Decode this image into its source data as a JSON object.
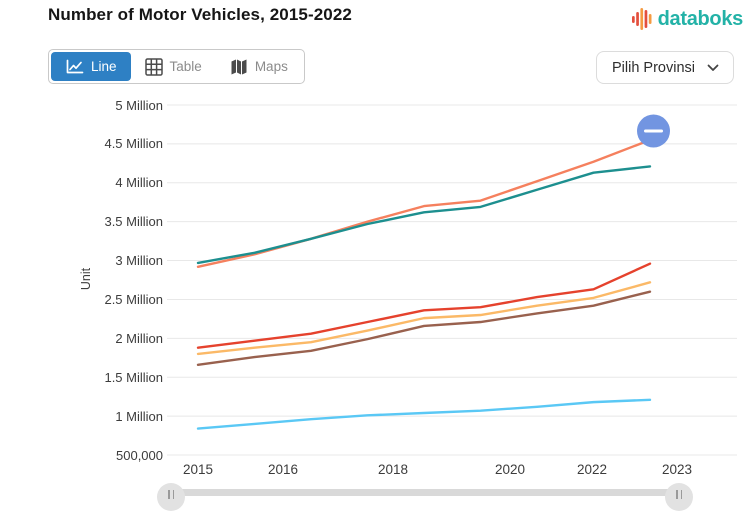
{
  "header": {
    "title": "Number of Motor Vehicles, 2015-2022",
    "brand": "databoks",
    "brand_colors": {
      "text_teal": "#23B2A7",
      "logo_red": "#E34F3D",
      "logo_orange": "#F59B42"
    }
  },
  "toolbar": {
    "tabs": [
      {
        "label": "Line",
        "active": true,
        "icon": "line-chart-icon"
      },
      {
        "label": "Table",
        "active": false,
        "icon": "table-icon"
      },
      {
        "label": "Maps",
        "active": false,
        "icon": "maps-icon"
      }
    ],
    "active_tab_color": "#2E80C4",
    "province_selector_label": "Pilih Provinsi"
  },
  "chart_data": {
    "type": "line",
    "title": "Number of Motor Vehicles, 2015-2022",
    "xlabel": "",
    "ylabel": "Unit",
    "grid": true,
    "legend": false,
    "x": [
      2015,
      2016,
      2017,
      2018,
      2019,
      2020,
      2021,
      2022,
      2023
    ],
    "x_tick_labels": [
      "2015",
      "2016",
      "2018",
      "2020",
      "2022",
      "2023"
    ],
    "y_tick_labels": [
      "5 Million",
      "4.5 Million",
      "4 Million",
      "3.5 Million",
      "3 Million",
      "2.5 Million",
      "2 Million",
      "1.5 Million",
      "1 Million",
      "500,000"
    ],
    "y_tick_values_millions": [
      5,
      4.5,
      4,
      3.5,
      3,
      2.5,
      2,
      1.5,
      1,
      0.5
    ],
    "ylim_millions": [
      0.5,
      5
    ],
    "series": [
      {
        "name": "coral",
        "color": "#F5805E",
        "values_millions": [
          2.92,
          3.08,
          3.28,
          3.5,
          3.7,
          3.77,
          4.02,
          4.27,
          4.55
        ]
      },
      {
        "name": "teal",
        "color": "#1D8F8F",
        "values_millions": [
          2.97,
          3.1,
          3.28,
          3.47,
          3.62,
          3.69,
          3.91,
          4.13,
          4.21
        ]
      },
      {
        "name": "red",
        "color": "#E5422D",
        "values_millions": [
          1.88,
          1.97,
          2.06,
          2.21,
          2.36,
          2.4,
          2.53,
          2.63,
          2.96
        ]
      },
      {
        "name": "amber",
        "color": "#FBB967",
        "values_millions": [
          1.8,
          1.88,
          1.95,
          2.1,
          2.26,
          2.3,
          2.42,
          2.52,
          2.72
        ]
      },
      {
        "name": "brown",
        "color": "#99614E",
        "values_millions": [
          1.66,
          1.76,
          1.84,
          1.99,
          2.16,
          2.21,
          2.32,
          2.42,
          2.6
        ]
      },
      {
        "name": "sky",
        "color": "#5AC8F5",
        "values_millions": [
          0.84,
          0.9,
          0.96,
          1.01,
          1.04,
          1.07,
          1.12,
          1.18,
          1.21
        ]
      }
    ],
    "annotation": {
      "symbol": "minus",
      "color": "#7295E1",
      "at_year": 2023,
      "on_series": "coral",
      "at_value_millions": 4.55
    }
  }
}
